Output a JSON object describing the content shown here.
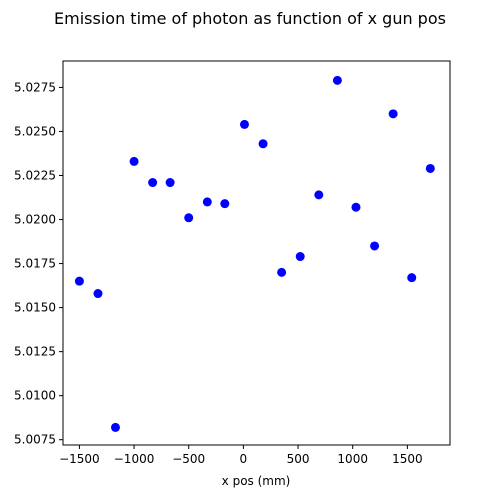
{
  "chart_data": {
    "type": "scatter",
    "title": "Emission time of photon as function of x gun pos",
    "xlabel": "x pos (mm)",
    "ylabel": "",
    "xlim": [
      -1650,
      1890
    ],
    "ylim": [
      5.0072,
      5.029
    ],
    "grid": false,
    "xticks": [
      -1500,
      -1000,
      -500,
      0,
      500,
      1000,
      1500
    ],
    "xtick_labels": [
      "−1500",
      "−1000",
      "−500",
      "0",
      "500",
      "1000",
      "1500"
    ],
    "yticks": [
      5.0075,
      5.01,
      5.0125,
      5.015,
      5.0175,
      5.02,
      5.0225,
      5.025,
      5.0275
    ],
    "ytick_labels": [
      "5.0075",
      "5.0100",
      "5.0125",
      "5.0150",
      "5.0175",
      "5.0200",
      "5.0225",
      "5.0250",
      "5.0275"
    ],
    "marker_color": "#0000ff",
    "series": [
      {
        "x": [
          -1500,
          -1330,
          -1170,
          -1000,
          -830,
          -670,
          -500,
          -330,
          -170,
          10,
          180,
          350,
          520,
          690,
          860,
          1030,
          1200,
          1370,
          1540,
          1710
        ],
        "y": [
          5.0165,
          5.0158,
          5.0082,
          5.0233,
          5.0221,
          5.0221,
          5.0201,
          5.021,
          5.0209,
          5.0254,
          5.0243,
          5.017,
          5.0179,
          5.0214,
          5.0279,
          5.0207,
          5.0185,
          5.026,
          5.0167,
          5.0229
        ]
      }
    ]
  }
}
